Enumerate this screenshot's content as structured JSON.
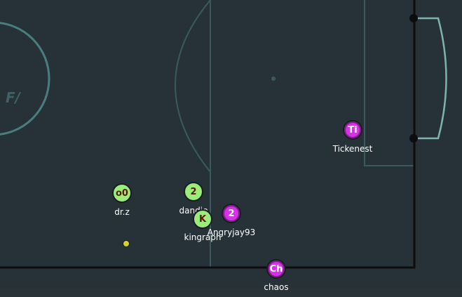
{
  "field": {
    "background": "#263238",
    "line_color": "#3b5a5e",
    "goal_color": "#7fb3ae",
    "boundary_color": "#0d0d0d",
    "center_logo": "F/"
  },
  "team_colors": {
    "red": "#d532e8",
    "blue": "#9bec7b"
  },
  "players": [
    {
      "id": "tickenest",
      "team": "red",
      "avatar": "Ti",
      "name": "Tickenest",
      "avatar_color": "#ffffff"
    },
    {
      "id": "o0",
      "team": "blue",
      "avatar": "o0",
      "name": "dr.z",
      "avatar_color": "#5a1a00"
    },
    {
      "id": "dandie",
      "team": "blue",
      "avatar": "2",
      "name": "dandie",
      "avatar_color": "#5a1a00"
    },
    {
      "id": "angryjay93",
      "team": "red",
      "avatar": "2",
      "name": "Angryjay93",
      "avatar_color": "#ffffff"
    },
    {
      "id": "kingraph",
      "team": "blue",
      "avatar": "K",
      "name": "kingraph",
      "avatar_color": "#5a1a00"
    },
    {
      "id": "chaos",
      "team": "red",
      "avatar": "Ch",
      "name": "chaos",
      "avatar_color": "#ffffff"
    }
  ],
  "ball": {
    "color": "#d4d22c"
  }
}
